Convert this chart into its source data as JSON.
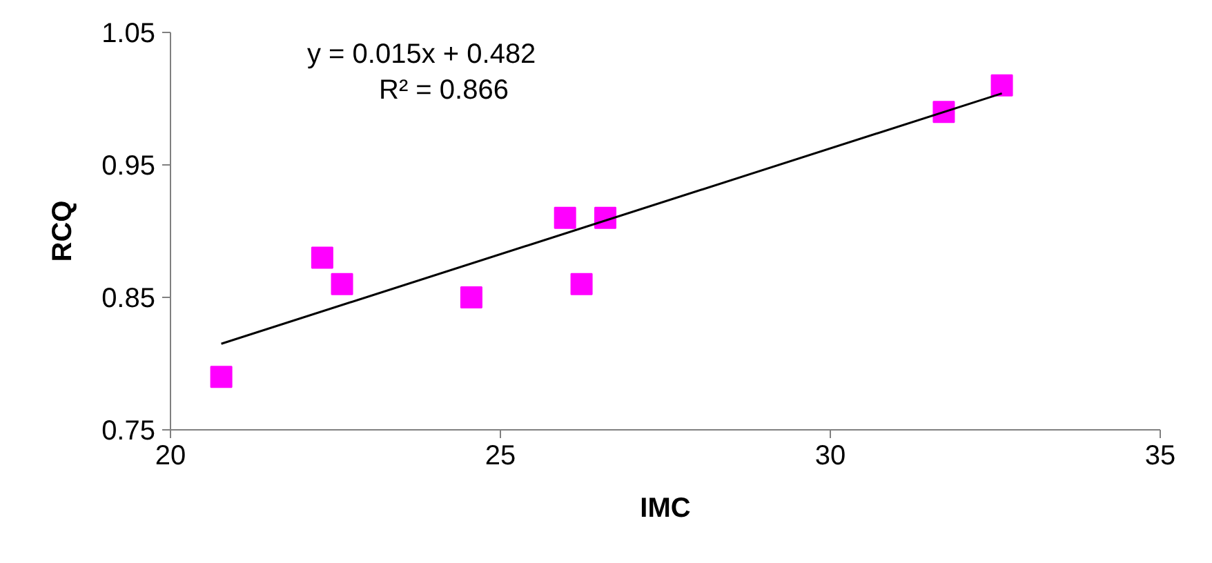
{
  "chart_data": {
    "type": "scatter",
    "xlabel": "IMC",
    "ylabel": "RCQ",
    "marker": "square",
    "grid": false,
    "xlim": [
      20,
      35
    ],
    "xticks": [
      20,
      25,
      30,
      35
    ],
    "ylim": [
      0.75,
      1.05
    ],
    "yticks": [
      {
        "value": 0.75,
        "label": "0.75"
      },
      {
        "value": 0.85,
        "label": "0.85"
      },
      {
        "value": 0.95,
        "label": "0.95"
      },
      {
        "value": 1.05,
        "label": "1.05"
      }
    ],
    "annotations": [
      "y = 0.015x + 0.482",
      "R² = 0.866"
    ],
    "series": [
      {
        "color": "#ff00ff",
        "x": [
          20.77,
          22.3,
          22.6,
          24.56,
          25.98,
          26.23,
          26.59,
          31.72,
          32.6
        ],
        "values": [
          0.79,
          0.88,
          0.86,
          0.85,
          0.91,
          0.86,
          0.91,
          0.99,
          1.01
        ]
      },
      {
        "type": "line",
        "marker": "none",
        "color": "#000000",
        "x": [
          20.77,
          32.6
        ],
        "values": [
          0.815,
          1.004
        ]
      }
    ]
  }
}
